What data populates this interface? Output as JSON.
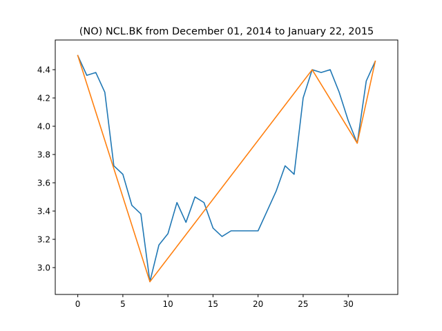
{
  "chart_data": {
    "type": "line",
    "title": "(NO) NCL.BK from December 01, 2014 to January 22, 2015",
    "xlabel": "",
    "ylabel": "",
    "xlim": [
      -2.5,
      35.5
    ],
    "ylim": [
      2.81,
      4.61
    ],
    "x_ticks": [
      0,
      5,
      10,
      15,
      20,
      25,
      30
    ],
    "y_ticks": [
      3.0,
      3.2,
      3.4,
      3.6,
      3.8,
      4.0,
      4.2,
      4.4
    ],
    "grid": false,
    "series": [
      {
        "color": "#1f77b4",
        "x": [
          0,
          1,
          2,
          3,
          4,
          5,
          6,
          7,
          8,
          9,
          10,
          11,
          12,
          13,
          14,
          15,
          16,
          17,
          18,
          19,
          20,
          21,
          22,
          23,
          24,
          25,
          26,
          27,
          28,
          29,
          30,
          31,
          32,
          33
        ],
        "y": [
          4.5,
          4.36,
          4.38,
          4.24,
          3.72,
          3.66,
          3.44,
          3.38,
          2.9,
          3.16,
          3.24,
          3.46,
          3.32,
          3.5,
          3.46,
          3.28,
          3.22,
          3.26,
          3.26,
          3.26,
          3.26,
          3.4,
          3.54,
          3.72,
          3.66,
          4.2,
          4.4,
          4.38,
          4.4,
          4.24,
          4.04,
          3.88,
          4.32,
          4.46
        ]
      },
      {
        "color": "#ff7f0e",
        "x": [
          0,
          8,
          26,
          31,
          33
        ],
        "y": [
          4.5,
          2.9,
          4.4,
          3.88,
          4.46
        ]
      }
    ]
  }
}
